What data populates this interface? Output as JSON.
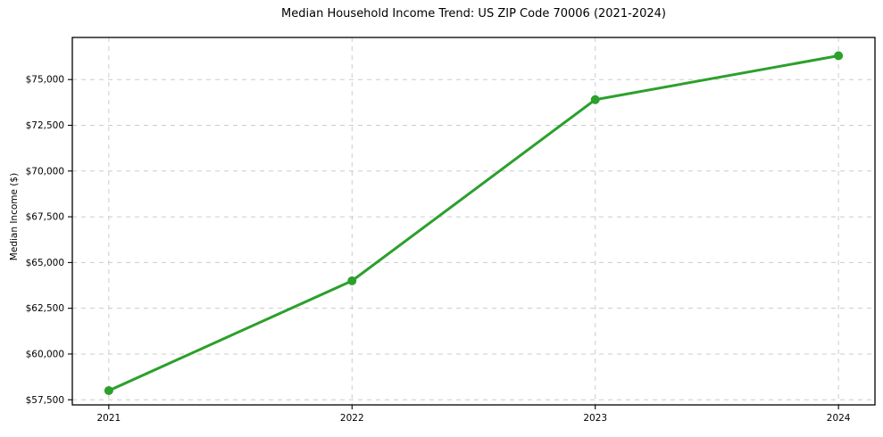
{
  "chart_data": {
    "type": "line",
    "title": "Median Household Income Trend: US ZIP Code 70006 (2021-2024)",
    "xlabel": "",
    "ylabel": "Median Income ($)",
    "x": [
      2021,
      2022,
      2023,
      2024
    ],
    "x_tick_labels": [
      "2021",
      "2022",
      "2023",
      "2024"
    ],
    "series": [
      {
        "name": "Median Household Income",
        "values": [
          58000,
          64000,
          73900,
          76300
        ]
      }
    ],
    "y_ticks": [
      57500,
      60000,
      62500,
      65000,
      67500,
      70000,
      72500,
      75000
    ],
    "y_tick_labels": [
      "$57,500",
      "$60,000",
      "$62,500",
      "$65,000",
      "$67,500",
      "$70,000",
      "$72,500",
      "$75,000"
    ],
    "xlim": [
      2020.85,
      2024.15
    ],
    "ylim": [
      57220,
      77300
    ],
    "grid": true,
    "grid_style": "dashed",
    "legend": "none",
    "line_color": "#2ca02c",
    "marker": "circle",
    "marker_radius": 5,
    "background_color": "#ffffff"
  }
}
